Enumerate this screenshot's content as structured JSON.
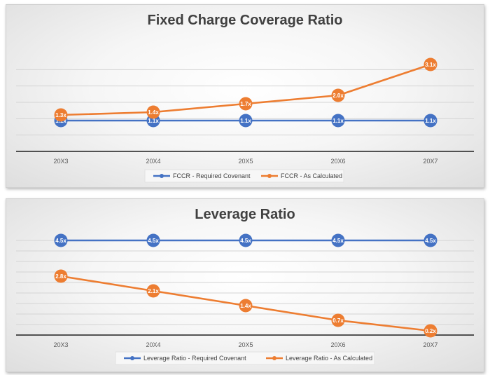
{
  "chart_data": [
    {
      "type": "line",
      "title": "Fixed Charge Coverage Ratio",
      "categories": [
        "20X3",
        "20X4",
        "20X5",
        "20X6",
        "20X7"
      ],
      "ylim": [
        0,
        3.5
      ],
      "grid": true,
      "legend_position": "bottom",
      "series": [
        {
          "name": "FCCR - Required Covenant",
          "color": "#4472c4",
          "values": [
            1.1,
            1.1,
            1.1,
            1.1,
            1.1
          ],
          "labels": [
            "1.1x",
            "1.1x",
            "1.1x",
            "1.1x",
            "1.1x"
          ]
        },
        {
          "name": "FCCR - As Calculated",
          "color": "#ed7d31",
          "values": [
            1.3,
            1.4,
            1.7,
            2.0,
            3.1
          ],
          "labels": [
            "1.3x",
            "1.4x",
            "1.7x",
            "2.0x",
            "3.1x"
          ]
        }
      ]
    },
    {
      "type": "line",
      "title": "Leverage Ratio",
      "categories": [
        "20X3",
        "20X4",
        "20X5",
        "20X6",
        "20X7"
      ],
      "ylim": [
        0,
        5
      ],
      "grid": true,
      "legend_position": "bottom",
      "series": [
        {
          "name": "Leverage Ratio - Required Covenant",
          "color": "#4472c4",
          "values": [
            4.5,
            4.5,
            4.5,
            4.5,
            4.5
          ],
          "labels": [
            "4.5x",
            "4.5x",
            "4.5x",
            "4.5x",
            "4.5x"
          ]
        },
        {
          "name": "Leverage Ratio - As Calculated",
          "color": "#ed7d31",
          "values": [
            2.8,
            2.1,
            1.4,
            0.7,
            0.2
          ],
          "labels": [
            "2.8x",
            "2.1x",
            "1.4x",
            "0.7x",
            "0.2x"
          ]
        }
      ]
    }
  ]
}
